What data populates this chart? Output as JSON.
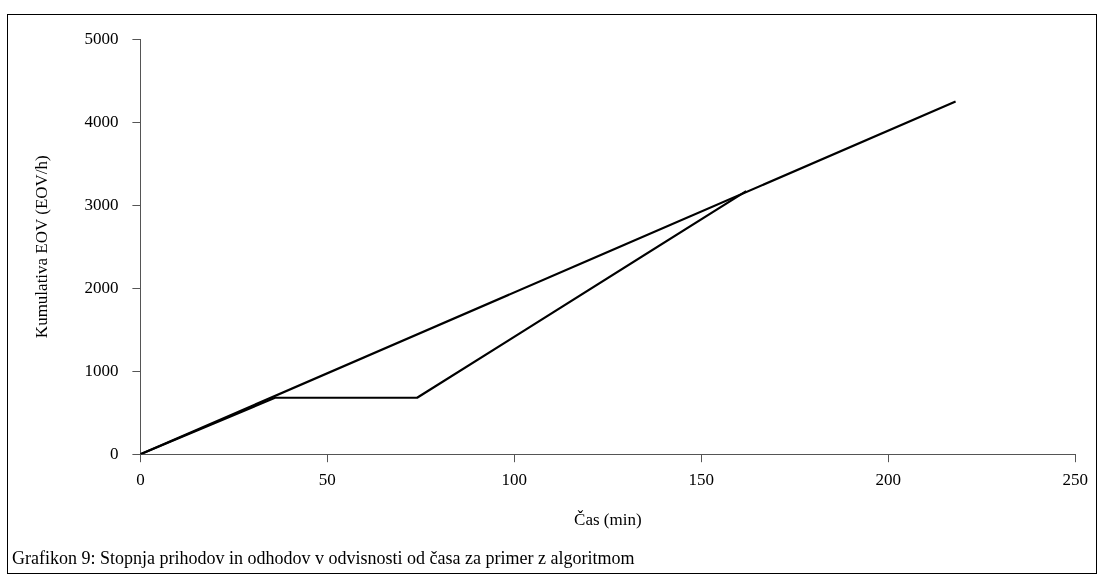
{
  "chart_data": {
    "type": "line",
    "xlabel": "Čas (min)",
    "ylabel": "Kumulativa EOV (EOV/h)",
    "xlim": [
      0,
      250
    ],
    "xticks": [
      0,
      50,
      100,
      150,
      200,
      250
    ],
    "ylim": [
      0,
      5000
    ],
    "yticks": [
      0,
      1000,
      2000,
      3000,
      4000,
      5000
    ],
    "grid": false,
    "legend": false,
    "marker": "none",
    "line_style": "solid",
    "series": [
      {
        "color": "#000000",
        "x": [
          0,
          218
        ],
        "values": [
          0,
          4250
        ]
      },
      {
        "color": "#000000",
        "x": [
          0,
          36,
          74,
          162
        ],
        "values": [
          0,
          680,
          680,
          3170
        ]
      }
    ],
    "annotations": [
      "Grafikon 9: Stopnja prihodov in odhodov v odvisnosti od časa za primer z algoritmom"
    ]
  }
}
